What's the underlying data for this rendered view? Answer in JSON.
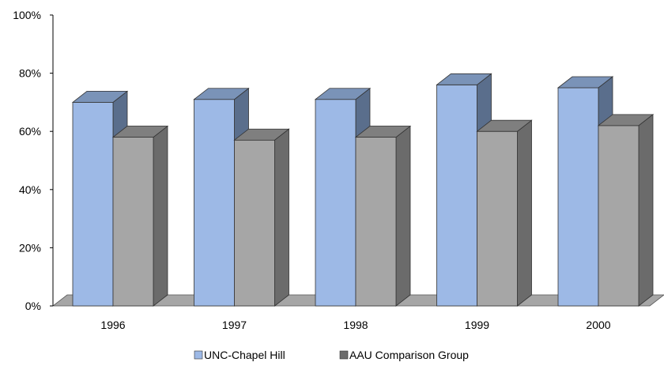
{
  "chart_data": {
    "type": "bar",
    "style": "3d-clustered-column",
    "categories": [
      "1996",
      "1997",
      "1998",
      "1999",
      "2000"
    ],
    "series": [
      {
        "name": "UNC-Chapel Hill",
        "values": [
          70,
          71,
          71,
          76,
          75
        ],
        "colors": {
          "front": "#9DB9E6",
          "top": "#7A93B8",
          "side": "#5A6E8C"
        }
      },
      {
        "name": "AAU Comparison Group",
        "values": [
          58,
          57,
          58,
          60,
          62
        ],
        "colors": {
          "front": "#A6A6A6",
          "top": "#7F7F7F",
          "side": "#6B6B6B"
        }
      }
    ],
    "y_ticks": [
      "0%",
      "20%",
      "40%",
      "60%",
      "80%",
      "100%"
    ],
    "ylim": [
      0,
      100
    ],
    "title": "",
    "xlabel": "",
    "ylabel": "",
    "grid": false,
    "legend_position": "bottom",
    "floor_color": "#A6A6A6"
  }
}
